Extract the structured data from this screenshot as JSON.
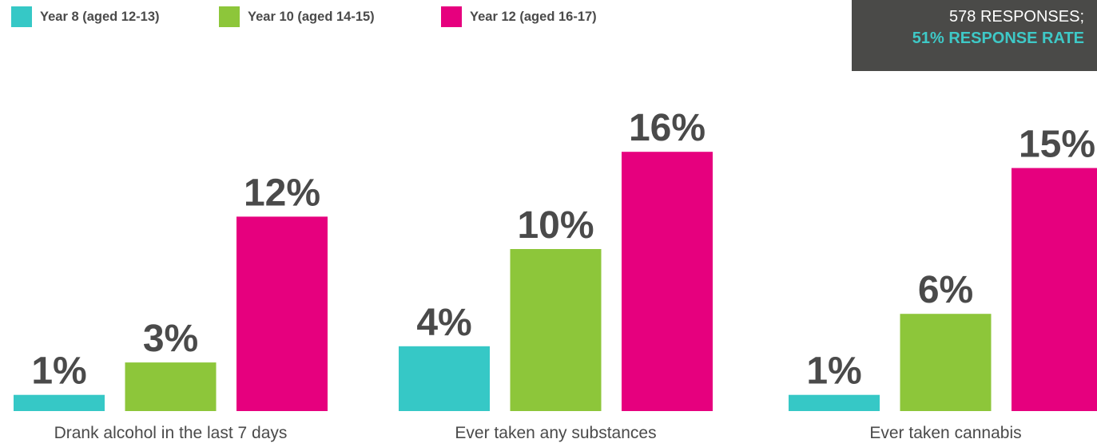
{
  "legend": [
    {
      "label": "Year 8 (aged 12-13)",
      "color": "#36c8c6"
    },
    {
      "label": "Year 10 (aged 14-15)",
      "color": "#8dc63a"
    },
    {
      "label": "Year 12 (aged 16-17)",
      "color": "#e6007e"
    }
  ],
  "info": {
    "line1": "578 RESPONSES;",
    "line2": "51% RESPONSE RATE"
  },
  "chart_data": {
    "type": "bar",
    "categories": [
      "Drank alcohol in the last 7 days",
      "Ever taken any substances",
      "Ever taken cannabis"
    ],
    "series": [
      {
        "name": "Year 8 (aged 12-13)",
        "color": "#36c8c6",
        "values": [
          1,
          4,
          1
        ],
        "labels": [
          "1%",
          "4%",
          "1%"
        ]
      },
      {
        "name": "Year 10 (aged 14-15)",
        "color": "#8dc63a",
        "values": [
          3,
          10,
          6
        ],
        "labels": [
          "3%",
          "10%",
          "6%"
        ]
      },
      {
        "name": "Year 12 (aged 16-17)",
        "color": "#e6007e",
        "values": [
          12,
          16,
          15
        ],
        "labels": [
          "12%",
          "16%",
          "15%"
        ]
      }
    ],
    "ylim": [
      0,
      16
    ],
    "grid": false,
    "legend_position": "top-left"
  }
}
